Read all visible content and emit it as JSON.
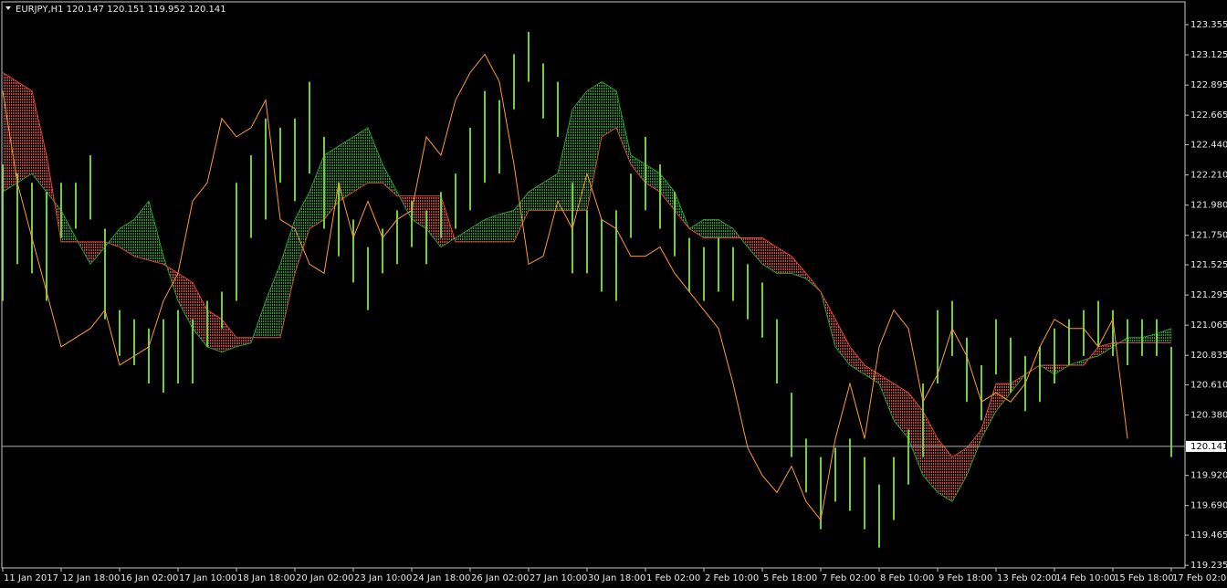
{
  "chart_data": {
    "type": "ichimoku",
    "title": "EURJPY,H1  120.147 120.151 119.952 120.141",
    "categories": [
      "11 Jan 2017",
      null,
      null,
      null,
      "12 Jan 18:00",
      null,
      null,
      null,
      "16 Jan 02:00",
      null,
      null,
      null,
      "17 Jan 10:00",
      null,
      null,
      null,
      "18 Jan 18:00",
      null,
      null,
      null,
      "20 Jan 02:00",
      null,
      null,
      null,
      "23 Jan 10:00",
      null,
      null,
      null,
      "24 Jan 18:00",
      null,
      null,
      null,
      "26 Jan 02:00",
      null,
      null,
      null,
      "27 Jan 10:00",
      null,
      null,
      null,
      "30 Jan 18:00",
      null,
      null,
      null,
      "1 Feb 02:00",
      null,
      null,
      null,
      "2 Feb 10:00",
      null,
      null,
      null,
      "5 Feb 18:00",
      null,
      null,
      null,
      "7 Feb 02:00",
      null,
      null,
      null,
      "8 Feb 10:00",
      null,
      null,
      null,
      "9 Feb 18:00",
      null,
      null,
      null,
      "13 Feb 02:00",
      null,
      null,
      null,
      "14 Feb 10:00",
      null,
      null,
      null,
      "15 Feb 18:00",
      null,
      null,
      null,
      "17 Feb 02:00"
    ],
    "price_high": [
      122.29,
      122.22,
      122.15,
      122.08,
      122.15,
      122.15,
      122.36,
      121.8,
      121.18,
      121.11,
      121.04,
      121.11,
      121.18,
      121.11,
      121.25,
      121.32,
      122.15,
      122.36,
      122.64,
      122.57,
      122.64,
      122.92,
      122.5,
      122.15,
      121.87,
      121.66,
      121.8,
      121.94,
      122.01,
      121.94,
      122.08,
      122.22,
      122.57,
      122.85,
      122.78,
      123.13,
      123.3,
      123.06,
      122.92,
      122.15,
      121.94,
      121.87,
      121.94,
      122.22,
      122.5,
      122.29,
      122.08,
      121.73,
      121.66,
      121.73,
      121.66,
      121.53,
      121.39,
      121.11,
      120.55,
      120.2,
      120.06,
      120.13,
      120.2,
      120.06,
      119.85,
      120.06,
      120.27,
      120.62,
      121.18,
      121.25,
      120.97,
      120.76,
      121.11,
      120.97,
      120.83,
      120.9,
      121.04,
      121.11,
      121.18,
      121.25,
      121.18,
      121.11,
      121.11,
      121.11,
      120.9
    ],
    "price_low": [
      121.25,
      121.53,
      121.46,
      121.25,
      121.73,
      121.8,
      121.87,
      121.11,
      120.83,
      120.76,
      120.62,
      120.55,
      120.62,
      120.62,
      120.9,
      121.04,
      121.25,
      121.73,
      121.87,
      122.15,
      122.01,
      122.22,
      121.8,
      121.59,
      121.39,
      121.18,
      121.46,
      121.53,
      121.66,
      121.53,
      121.73,
      121.8,
      121.94,
      122.15,
      122.22,
      122.71,
      122.92,
      122.64,
      122.5,
      121.46,
      121.46,
      121.32,
      121.25,
      121.73,
      121.94,
      121.8,
      121.59,
      121.32,
      121.25,
      121.32,
      121.25,
      121.11,
      120.97,
      120.62,
      120.06,
      119.79,
      119.51,
      119.72,
      119.65,
      119.51,
      119.37,
      119.58,
      119.85,
      120.06,
      120.62,
      120.83,
      120.48,
      120.34,
      120.69,
      120.55,
      120.41,
      120.48,
      120.62,
      120.76,
      120.83,
      120.9,
      120.83,
      120.76,
      120.83,
      120.83,
      120.06
    ],
    "chikou": [
      122.85,
      122.15,
      121.73,
      121.32,
      120.9,
      120.97,
      121.04,
      121.18,
      120.76,
      120.83,
      120.9,
      121.25,
      121.46,
      122.01,
      122.15,
      122.64,
      122.5,
      122.57,
      122.78,
      121.87,
      121.8,
      121.53,
      121.46,
      122.15,
      121.73,
      122.01,
      121.73,
      121.87,
      121.94,
      122.5,
      122.36,
      122.78,
      122.99,
      123.13,
      122.92,
      122.29,
      121.53,
      121.59,
      122.01,
      121.8,
      122.22,
      121.87,
      121.8,
      121.59,
      121.59,
      121.66,
      121.46,
      121.32,
      121.18,
      121.04,
      120.62,
      120.13,
      119.92,
      119.79,
      119.99,
      119.72,
      119.58,
      120.2,
      120.62,
      120.2,
      120.9,
      121.18,
      121.04,
      120.48,
      120.69,
      121.04,
      120.83,
      120.48,
      120.55,
      120.48,
      120.62,
      120.9,
      121.11,
      121.04,
      121.04,
      120.9,
      121.11,
      120.2,
      null,
      null,
      null
    ],
    "senkou_a": [
      122.08,
      122.15,
      122.22,
      122.08,
      121.94,
      121.73,
      121.53,
      121.66,
      121.8,
      121.87,
      122.01,
      121.59,
      121.25,
      121.04,
      120.9,
      120.86,
      120.9,
      120.93,
      121.25,
      121.53,
      121.87,
      122.08,
      122.36,
      122.43,
      122.5,
      122.57,
      122.29,
      122.08,
      121.87,
      121.8,
      121.66,
      121.73,
      121.8,
      121.87,
      121.91,
      121.94,
      122.08,
      122.15,
      122.22,
      122.71,
      122.85,
      122.92,
      122.85,
      122.36,
      122.29,
      122.22,
      122.08,
      121.8,
      121.87,
      121.87,
      121.8,
      121.66,
      121.53,
      121.46,
      121.46,
      121.42,
      121.32,
      120.9,
      120.76,
      120.69,
      120.62,
      120.34,
      120.2,
      119.92,
      119.79,
      119.72,
      119.92,
      120.2,
      120.41,
      120.55,
      120.69,
      120.76,
      120.69,
      120.76,
      120.8,
      120.83,
      120.9,
      120.97,
      120.97,
      121.0,
      121.04
    ],
    "senkou_b": [
      122.99,
      122.92,
      122.85,
      122.36,
      121.7,
      121.7,
      121.7,
      121.7,
      121.66,
      121.59,
      121.56,
      121.53,
      121.46,
      121.39,
      121.18,
      121.11,
      120.97,
      120.97,
      120.97,
      120.97,
      121.46,
      121.8,
      121.87,
      122.01,
      122.08,
      122.15,
      122.15,
      122.05,
      122.05,
      122.05,
      122.05,
      121.7,
      121.7,
      121.7,
      121.7,
      121.7,
      121.94,
      121.94,
      121.94,
      121.94,
      121.94,
      122.5,
      122.57,
      122.29,
      122.15,
      122.08,
      121.94,
      121.8,
      121.73,
      121.73,
      121.73,
      121.73,
      121.73,
      121.66,
      121.59,
      121.46,
      121.32,
      121.11,
      120.9,
      120.76,
      120.69,
      120.62,
      120.55,
      120.41,
      120.2,
      120.06,
      120.13,
      120.27,
      120.62,
      120.62,
      120.69,
      120.76,
      120.76,
      120.76,
      120.76,
      120.9,
      120.93,
      120.93,
      120.93,
      120.93,
      120.93
    ],
    "price_color": "#6fcf3f",
    "chikou_color": "#ff9a2e",
    "bull_cloud_color": "#2f9a2f",
    "bear_cloud_color": "#d8483a",
    "current_price": 120.141,
    "ylim": [
      119.215,
      123.543
    ],
    "yticks": [
      123.355,
      123.125,
      122.895,
      122.665,
      {
        "value": 122.44,
        "label": "122.440"
      },
      {
        "value": 122.21,
        "label": "122.210"
      },
      {
        "value": 121.98,
        "label": "121.980"
      },
      {
        "value": 121.75,
        "label": "121.750"
      },
      121.525,
      121.295,
      121.065,
      120.835,
      {
        "value": 120.61,
        "label": "120.610"
      },
      {
        "value": 120.38,
        "label": "120.380"
      },
      {
        "value": 119.92,
        "label": "119.920"
      },
      {
        "value": 119.69,
        "label": "119.690"
      },
      119.465,
      119.235
    ]
  }
}
